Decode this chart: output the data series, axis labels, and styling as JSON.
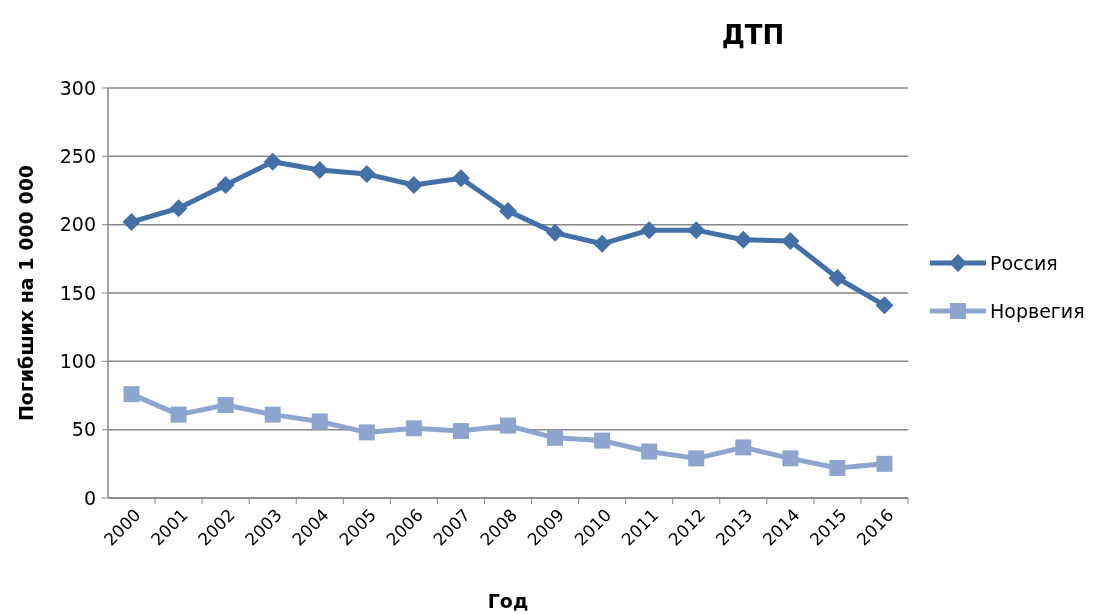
{
  "chart_data": {
    "type": "line",
    "title": "ДТП",
    "xlabel": "Год",
    "ylabel": "Погибших на 1 000 000",
    "categories": [
      "2000",
      "2001",
      "2002",
      "2003",
      "2004",
      "2005",
      "2006",
      "2007",
      "2008",
      "2009",
      "2010",
      "2011",
      "2012",
      "2013",
      "2014",
      "2015",
      "2016"
    ],
    "series": [
      {
        "name": "Россия",
        "color": "#4470a8",
        "marker": "diamond",
        "values": [
          202,
          212,
          229,
          246,
          240,
          237,
          229,
          234,
          210,
          194,
          186,
          196,
          196,
          189,
          188,
          161,
          141
        ]
      },
      {
        "name": "Норвегия",
        "color": "#8ea6cf",
        "marker": "square",
        "values": [
          76,
          61,
          68,
          61,
          56,
          48,
          51,
          49,
          53,
          44,
          42,
          34,
          29,
          37,
          29,
          22,
          25
        ]
      }
    ],
    "ylim": [
      0,
      300
    ],
    "yticks": [
      0,
      50,
      100,
      150,
      200,
      250,
      300
    ],
    "grid": "y",
    "legend": "right"
  }
}
